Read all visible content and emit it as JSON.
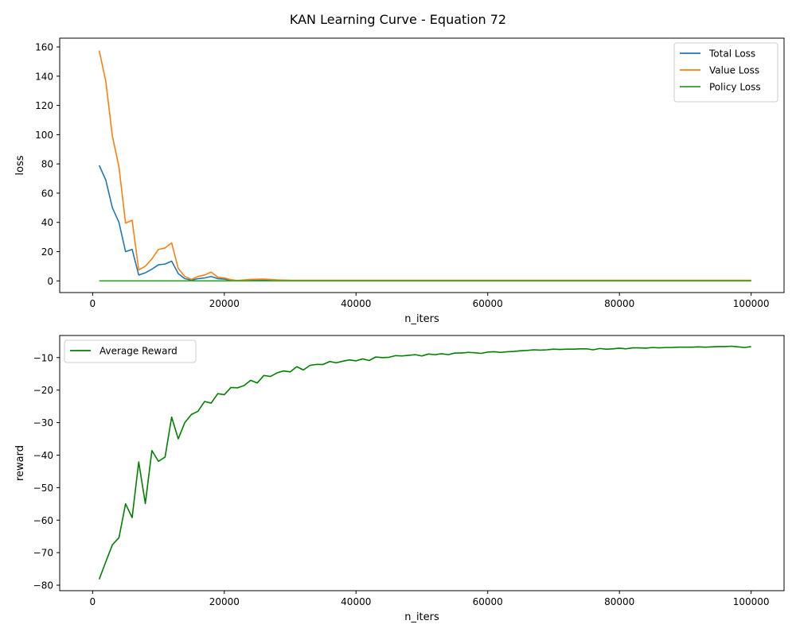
{
  "figure": {
    "title": "KAN Learning Curve - Equation 72"
  },
  "chart_data": [
    {
      "type": "line",
      "xlabel": "n_iters",
      "ylabel": "loss",
      "xlim": [
        -5000,
        105000
      ],
      "ylim": [
        -8,
        166
      ],
      "xticks": [
        0,
        20000,
        40000,
        60000,
        80000,
        100000
      ],
      "xtick_labels": [
        "0",
        "20000",
        "40000",
        "60000",
        "80000",
        "100000"
      ],
      "yticks": [
        0,
        20,
        40,
        60,
        80,
        100,
        120,
        140,
        160
      ],
      "ytick_labels": [
        "0",
        "20",
        "40",
        "60",
        "80",
        "100",
        "120",
        "140",
        "160"
      ],
      "grid": false,
      "legend": "upper right",
      "series": [
        {
          "name": "Total Loss",
          "color": "#1f77b4",
          "x": [
            1000,
            2000,
            3000,
            4000,
            5000,
            6000,
            7000,
            8000,
            9000,
            10000,
            11000,
            12000,
            13000,
            14000,
            15000,
            16000,
            17000,
            18000,
            19000,
            20000,
            21000,
            22000,
            24000,
            26000,
            28000,
            30000,
            40000,
            50000,
            60000,
            70000,
            80000,
            90000,
            100000
          ],
          "values": [
            79,
            69,
            50,
            40,
            20,
            21.5,
            4,
            5.5,
            8,
            11,
            11.5,
            13.5,
            5,
            1.5,
            0.5,
            1.5,
            2,
            3,
            1.5,
            1.2,
            0.5,
            0.2,
            0.4,
            0.5,
            0.4,
            0.3,
            0.2,
            0.2,
            0.2,
            0.2,
            0.2,
            0.2,
            0.2
          ]
        },
        {
          "name": "Value Loss",
          "color": "#ff7f0e",
          "x": [
            1000,
            2000,
            3000,
            4000,
            5000,
            6000,
            7000,
            8000,
            9000,
            10000,
            11000,
            12000,
            13000,
            14000,
            15000,
            16000,
            17000,
            18000,
            19000,
            20000,
            21000,
            22000,
            24000,
            26000,
            28000,
            30000,
            40000,
            50000,
            60000,
            70000,
            80000,
            90000,
            100000
          ],
          "values": [
            157.5,
            136.5,
            99,
            78,
            39.5,
            41.5,
            7.5,
            10,
            15,
            21.5,
            22.5,
            26,
            8.5,
            3,
            1,
            3,
            4,
            6,
            2.5,
            2,
            0.8,
            0.3,
            1,
            1.2,
            0.7,
            0.4,
            0.4,
            0.4,
            0.4,
            0.4,
            0.4,
            0.4,
            0.4
          ]
        },
        {
          "name": "Policy Loss",
          "color": "#2ca02c",
          "x": [
            1000,
            100000
          ],
          "values": [
            0,
            0
          ]
        }
      ]
    },
    {
      "type": "line",
      "xlabel": "n_iters",
      "ylabel": "reward",
      "xlim": [
        -5000,
        105000
      ],
      "ylim": [
        -81.7,
        -3.2
      ],
      "xticks": [
        0,
        20000,
        40000,
        60000,
        80000,
        100000
      ],
      "xtick_labels": [
        "0",
        "20000",
        "40000",
        "60000",
        "80000",
        "100000"
      ],
      "yticks": [
        -80,
        -70,
        -60,
        -50,
        -40,
        -30,
        -20,
        -10
      ],
      "ytick_labels": [
        "−80",
        "−70",
        "−60",
        "−50",
        "−40",
        "−30",
        "−20",
        "−10"
      ],
      "grid": false,
      "legend": "upper left",
      "series": [
        {
          "name": "Average Reward",
          "color": "#008000",
          "x": [
            1000,
            2000,
            3000,
            4000,
            5000,
            6000,
            7000,
            8000,
            9000,
            10000,
            11000,
            12000,
            13000,
            14000,
            15000,
            16000,
            17000,
            18000,
            19000,
            20000,
            21000,
            22000,
            23000,
            24000,
            25000,
            26000,
            27000,
            28000,
            29000,
            30000,
            31000,
            32000,
            33000,
            34000,
            35000,
            36000,
            37000,
            38000,
            39000,
            40000,
            41000,
            42000,
            43000,
            44000,
            45000,
            46000,
            47000,
            48000,
            49000,
            50000,
            51000,
            52000,
            53000,
            54000,
            55000,
            56000,
            57000,
            58000,
            59000,
            60000,
            61000,
            62000,
            63000,
            64000,
            65000,
            66000,
            67000,
            68000,
            69000,
            70000,
            71000,
            72000,
            73000,
            74000,
            75000,
            76000,
            77000,
            78000,
            79000,
            80000,
            81000,
            82000,
            83000,
            84000,
            85000,
            86000,
            87000,
            88000,
            89000,
            90000,
            91000,
            92000,
            93000,
            94000,
            95000,
            96000,
            97000,
            98000,
            99000,
            100000
          ],
          "values": [
            -78.2,
            -72.8,
            -67.6,
            -65.4,
            -55,
            -59.2,
            -42.1,
            -54.9,
            -38.6,
            -41.9,
            -40.6,
            -28.3,
            -35,
            -30,
            -27.5,
            -26.5,
            -23.5,
            -24,
            -21.1,
            -21.4,
            -19.2,
            -19.3,
            -18.6,
            -17,
            -17.8,
            -15.5,
            -15.8,
            -14.7,
            -14.1,
            -14.4,
            -12.8,
            -13.8,
            -12.4,
            -12.1,
            -12.1,
            -11.2,
            -11.6,
            -11.1,
            -10.7,
            -11,
            -10.4,
            -10.9,
            -9.8,
            -10,
            -9.9,
            -9.4,
            -9.5,
            -9.3,
            -9.1,
            -9.5,
            -8.9,
            -9.1,
            -8.8,
            -9.1,
            -8.6,
            -8.6,
            -8.4,
            -8.5,
            -8.7,
            -8.3,
            -8.2,
            -8.4,
            -8.2,
            -8.1,
            -7.9,
            -7.8,
            -7.6,
            -7.7,
            -7.6,
            -7.4,
            -7.5,
            -7.4,
            -7.4,
            -7.3,
            -7.3,
            -7.6,
            -7.2,
            -7.4,
            -7.3,
            -7.1,
            -7.3,
            -7,
            -7,
            -7.1,
            -6.9,
            -7,
            -6.9,
            -6.9,
            -6.8,
            -6.8,
            -6.8,
            -6.7,
            -6.8,
            -6.7,
            -6.6,
            -6.6,
            -6.5,
            -6.7,
            -6.9,
            -6.6
          ]
        }
      ]
    }
  ]
}
